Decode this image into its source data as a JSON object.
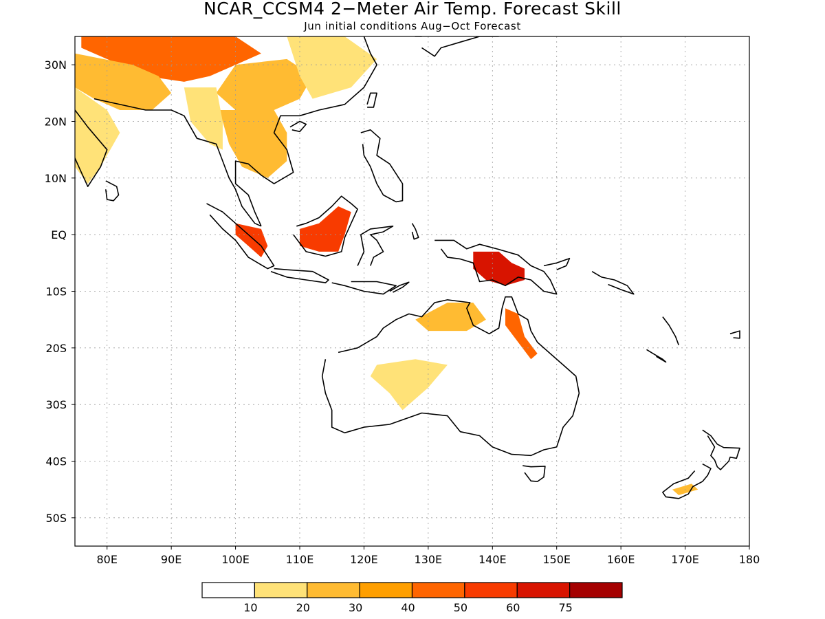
{
  "title": "NCAR_CCSM4 2−Meter Air Temp. Forecast Skill",
  "subtitle": "Jun initial conditions  Aug−Oct Forecast",
  "map": {
    "lon_range": [
      75,
      180
    ],
    "lat_range": [
      -55,
      35
    ],
    "lat_ticks": [
      {
        "value": 30,
        "label": "30N"
      },
      {
        "value": 20,
        "label": "20N"
      },
      {
        "value": 10,
        "label": "10N"
      },
      {
        "value": 0,
        "label": "EQ"
      },
      {
        "value": -10,
        "label": "10S"
      },
      {
        "value": -20,
        "label": "20S"
      },
      {
        "value": -30,
        "label": "30S"
      },
      {
        "value": -40,
        "label": "40S"
      },
      {
        "value": -50,
        "label": "50S"
      }
    ],
    "lon_ticks": [
      {
        "value": 80,
        "label": "80E"
      },
      {
        "value": 90,
        "label": "90E"
      },
      {
        "value": 100,
        "label": "100E"
      },
      {
        "value": 110,
        "label": "110E"
      },
      {
        "value": 120,
        "label": "120E"
      },
      {
        "value": 130,
        "label": "130E"
      },
      {
        "value": 140,
        "label": "140E"
      },
      {
        "value": 150,
        "label": "150E"
      },
      {
        "value": 160,
        "label": "160E"
      },
      {
        "value": 170,
        "label": "170E"
      },
      {
        "value": 180,
        "label": "180"
      }
    ],
    "grid": true
  },
  "legend": {
    "levels": [
      10,
      20,
      30,
      40,
      50,
      60,
      75
    ],
    "colors": [
      "#ffffff",
      "#ffe278",
      "#ffbb32",
      "#ff9f00",
      "#ff6500",
      "#f83b00",
      "#d81400",
      "#a50000"
    ]
  },
  "skill_regions": [
    {
      "name": "himalaya-tibet",
      "color": "#ff6500",
      "points": [
        [
          76,
          35
        ],
        [
          100,
          35
        ],
        [
          104,
          32
        ],
        [
          100,
          30
        ],
        [
          96,
          28
        ],
        [
          92,
          27
        ],
        [
          86,
          28
        ],
        [
          80,
          31
        ],
        [
          76,
          33
        ]
      ]
    },
    {
      "name": "india-north",
      "color": "#ffbb32",
      "points": [
        [
          75,
          32
        ],
        [
          84,
          30
        ],
        [
          88,
          28
        ],
        [
          90,
          25
        ],
        [
          87,
          22
        ],
        [
          82,
          22
        ],
        [
          78,
          24
        ],
        [
          75,
          26
        ]
      ]
    },
    {
      "name": "india-west",
      "color": "#ffe278",
      "points": [
        [
          75,
          26
        ],
        [
          80,
          22
        ],
        [
          82,
          18
        ],
        [
          79,
          12
        ],
        [
          77,
          9
        ],
        [
          75,
          12
        ]
      ]
    },
    {
      "name": "china-south",
      "color": "#ffbb32",
      "points": [
        [
          100,
          30
        ],
        [
          108,
          31
        ],
        [
          112,
          28
        ],
        [
          110,
          24
        ],
        [
          106,
          22
        ],
        [
          100,
          22
        ],
        [
          97,
          25
        ]
      ]
    },
    {
      "name": "east-china",
      "color": "#ffe278",
      "points": [
        [
          108,
          35
        ],
        [
          117,
          35
        ],
        [
          122,
          31
        ],
        [
          118,
          26
        ],
        [
          112,
          24
        ],
        [
          110,
          28
        ]
      ]
    },
    {
      "name": "indochina",
      "color": "#ffbb32",
      "points": [
        [
          97,
          22
        ],
        [
          106,
          22
        ],
        [
          108,
          18
        ],
        [
          108,
          13
        ],
        [
          105,
          10
        ],
        [
          101,
          12
        ],
        [
          99,
          16
        ],
        [
          98,
          20
        ]
      ]
    },
    {
      "name": "burma",
      "color": "#ffe278",
      "points": [
        [
          92,
          26
        ],
        [
          97,
          26
        ],
        [
          98,
          20
        ],
        [
          98,
          15
        ],
        [
          96,
          16
        ],
        [
          93,
          20
        ]
      ]
    },
    {
      "name": "sumatra",
      "color": "#f83b00",
      "points": [
        [
          100,
          2
        ],
        [
          104,
          1
        ],
        [
          105,
          -2
        ],
        [
          104,
          -4
        ],
        [
          102,
          -2
        ],
        [
          100,
          0
        ]
      ]
    },
    {
      "name": "borneo",
      "color": "#f83b00",
      "points": [
        [
          110,
          1
        ],
        [
          113,
          2
        ],
        [
          116,
          5
        ],
        [
          118,
          4
        ],
        [
          117,
          0
        ],
        [
          116,
          -3
        ],
        [
          113,
          -3
        ],
        [
          110,
          -2
        ]
      ]
    },
    {
      "name": "new-guinea",
      "color": "#d81400",
      "points": [
        [
          137,
          -3
        ],
        [
          141,
          -3
        ],
        [
          143,
          -5
        ],
        [
          145,
          -6
        ],
        [
          145,
          -8
        ],
        [
          142,
          -9
        ],
        [
          139,
          -8
        ],
        [
          137,
          -6
        ]
      ]
    },
    {
      "name": "cape-york",
      "color": "#ff6500",
      "points": [
        [
          142,
          -13
        ],
        [
          144,
          -14
        ],
        [
          145,
          -18
        ],
        [
          147,
          -21
        ],
        [
          146,
          -22
        ],
        [
          144,
          -19
        ],
        [
          142,
          -16
        ]
      ]
    },
    {
      "name": "australia-north",
      "color": "#ffbb32",
      "points": [
        [
          128,
          -15
        ],
        [
          133,
          -12
        ],
        [
          137,
          -12
        ],
        [
          139,
          -15
        ],
        [
          136,
          -17
        ],
        [
          130,
          -17
        ]
      ]
    },
    {
      "name": "australia-central",
      "color": "#ffe278",
      "points": [
        [
          122,
          -23
        ],
        [
          128,
          -22
        ],
        [
          133,
          -23
        ],
        [
          130,
          -27
        ],
        [
          126,
          -31
        ],
        [
          124,
          -28
        ],
        [
          121,
          -25
        ]
      ]
    },
    {
      "name": "new-zealand-south",
      "color": "#ffbb32",
      "points": [
        [
          168,
          -45
        ],
        [
          171,
          -44
        ],
        [
          172,
          -45
        ],
        [
          169,
          -46
        ]
      ]
    }
  ]
}
